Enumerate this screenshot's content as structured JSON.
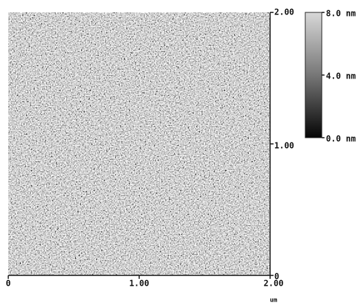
{
  "image": {
    "x_axis": {
      "ticks": [
        "0",
        "1.00",
        "2.00"
      ],
      "unit": "um"
    },
    "y_axis": {
      "ticks": [
        "0",
        "1.00",
        "2.00"
      ]
    },
    "colorbar": {
      "labels": [
        "8.0 nm",
        "4.0 nm",
        "0.0 nm"
      ]
    }
  }
}
